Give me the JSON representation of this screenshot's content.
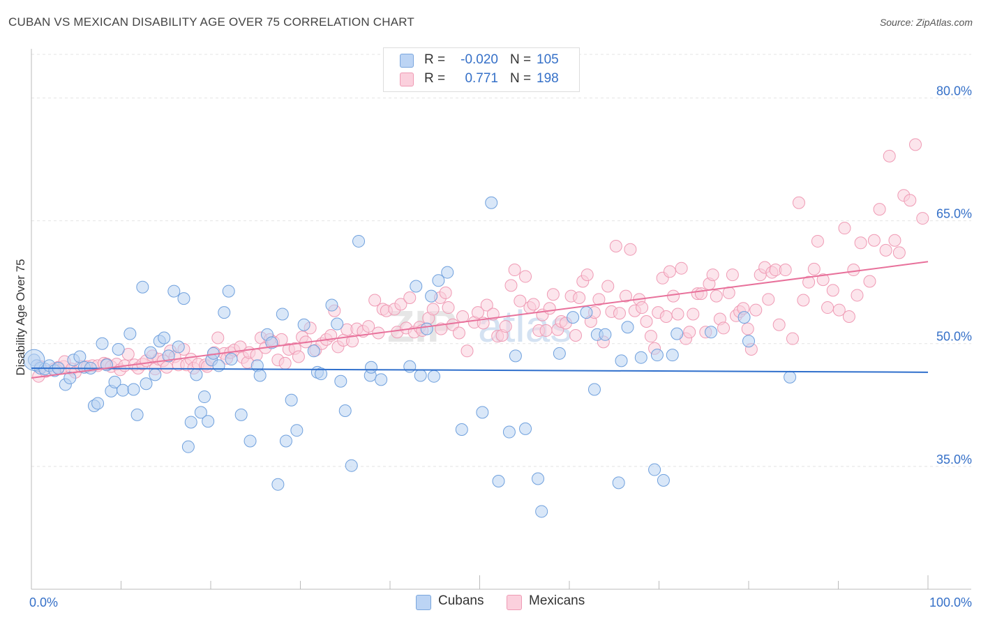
{
  "header": {
    "title": "CUBAN VS MEXICAN DISABILITY AGE OVER 75 CORRELATION CHART",
    "source": "Source: ZipAtlas.com"
  },
  "legend": {
    "r_label": "R =",
    "n_label": "N =",
    "rows": [
      {
        "name": "Cubans",
        "r": "-0.020",
        "n": "105",
        "color": "#a8c8f0"
      },
      {
        "name": "Mexicans",
        "r": "0.771",
        "n": "198",
        "color": "#f7b8cc"
      }
    ]
  },
  "watermark": {
    "zip": "ZIP",
    "atlas": "atlas"
  },
  "chart_data": {
    "type": "scatter",
    "title": "CUBAN VS MEXICAN DISABILITY AGE OVER 75 CORRELATION CHART",
    "xlabel": "",
    "ylabel": "Disability Age Over 75",
    "xlim": [
      0,
      100
    ],
    "ylim": [
      20,
      86
    ],
    "x_tick_labels": [
      "0.0%",
      "100.0%"
    ],
    "y_ticks": [
      35,
      50,
      65,
      80
    ],
    "y_tick_labels": [
      "35.0%",
      "50.0%",
      "65.0%",
      "80.0%"
    ],
    "grid": true,
    "series": [
      {
        "name": "Cubans",
        "color": "#6fa0dd",
        "fill": "#b9d3f3",
        "trend": {
          "x": [
            0,
            100
          ],
          "y": [
            47.0,
            46.5
          ]
        },
        "points": [
          [
            0.3,
            48.0
          ],
          [
            0.6,
            47.3
          ],
          [
            1.0,
            47.0
          ],
          [
            1.5,
            46.9
          ],
          [
            2.0,
            47.3
          ],
          [
            2.6,
            46.7
          ],
          [
            3.0,
            47.0
          ],
          [
            3.8,
            45.0
          ],
          [
            4.3,
            45.8
          ],
          [
            4.7,
            48.0
          ],
          [
            5.4,
            48.4
          ],
          [
            5.9,
            47.1
          ],
          [
            6.6,
            47.0
          ],
          [
            7.0,
            42.4
          ],
          [
            7.4,
            42.7
          ],
          [
            7.9,
            50.0
          ],
          [
            8.4,
            47.4
          ],
          [
            8.9,
            44.2
          ],
          [
            9.3,
            45.3
          ],
          [
            9.7,
            49.3
          ],
          [
            10.2,
            44.3
          ],
          [
            11.0,
            51.2
          ],
          [
            11.4,
            44.4
          ],
          [
            11.8,
            41.3
          ],
          [
            12.4,
            56.9
          ],
          [
            12.8,
            45.1
          ],
          [
            13.3,
            48.9
          ],
          [
            13.8,
            46.2
          ],
          [
            14.3,
            50.3
          ],
          [
            14.8,
            50.7
          ],
          [
            15.3,
            48.5
          ],
          [
            15.9,
            56.4
          ],
          [
            16.4,
            49.6
          ],
          [
            17.0,
            55.5
          ],
          [
            17.5,
            37.4
          ],
          [
            17.8,
            40.4
          ],
          [
            18.4,
            46.2
          ],
          [
            18.9,
            41.6
          ],
          [
            19.3,
            43.5
          ],
          [
            19.7,
            40.5
          ],
          [
            20.1,
            48.0
          ],
          [
            20.3,
            48.8
          ],
          [
            20.9,
            47.3
          ],
          [
            21.5,
            53.8
          ],
          [
            22.0,
            56.4
          ],
          [
            22.3,
            48.1
          ],
          [
            23.4,
            41.3
          ],
          [
            24.4,
            38.1
          ],
          [
            25.2,
            47.3
          ],
          [
            25.5,
            46.1
          ],
          [
            26.3,
            51.1
          ],
          [
            26.8,
            50.1
          ],
          [
            27.5,
            32.8
          ],
          [
            28.0,
            53.6
          ],
          [
            28.4,
            38.1
          ],
          [
            29.0,
            43.1
          ],
          [
            29.6,
            39.4
          ],
          [
            30.4,
            52.3
          ],
          [
            31.5,
            49.1
          ],
          [
            31.9,
            46.5
          ],
          [
            32.3,
            46.3
          ],
          [
            33.5,
            54.7
          ],
          [
            34.1,
            52.4
          ],
          [
            34.5,
            45.4
          ],
          [
            35.0,
            41.8
          ],
          [
            35.7,
            35.1
          ],
          [
            36.5,
            62.5
          ],
          [
            37.8,
            46.1
          ],
          [
            37.9,
            47.1
          ],
          [
            39.0,
            45.6
          ],
          [
            42.2,
            47.2
          ],
          [
            42.9,
            57.0
          ],
          [
            43.4,
            46.1
          ],
          [
            44.1,
            51.8
          ],
          [
            44.6,
            55.8
          ],
          [
            44.9,
            46.0
          ],
          [
            45.4,
            57.7
          ],
          [
            46.4,
            58.7
          ],
          [
            48.0,
            39.5
          ],
          [
            50.3,
            41.6
          ],
          [
            51.3,
            67.2
          ],
          [
            52.1,
            33.2
          ],
          [
            53.3,
            39.2
          ],
          [
            54.0,
            48.5
          ],
          [
            55.1,
            39.6
          ],
          [
            56.5,
            33.5
          ],
          [
            56.9,
            29.5
          ],
          [
            58.9,
            48.8
          ],
          [
            60.4,
            53.2
          ],
          [
            61.9,
            53.8
          ],
          [
            62.8,
            44.4
          ],
          [
            63.1,
            51.1
          ],
          [
            64.0,
            51.1
          ],
          [
            65.5,
            33.0
          ],
          [
            65.8,
            47.9
          ],
          [
            66.5,
            52.0
          ],
          [
            68.0,
            48.3
          ],
          [
            69.5,
            34.6
          ],
          [
            69.8,
            48.6
          ],
          [
            70.5,
            33.3
          ],
          [
            71.5,
            48.6
          ],
          [
            72.0,
            51.2
          ],
          [
            75.8,
            51.4
          ],
          [
            79.5,
            53.2
          ],
          [
            80.0,
            50.3
          ],
          [
            84.6,
            45.9
          ]
        ]
      },
      {
        "name": "Mexicans",
        "color": "#ef9ab4",
        "fill": "#fad0dc",
        "trend": {
          "x": [
            0,
            100
          ],
          "y": [
            45.8,
            60.0
          ]
        },
        "points": [
          [
            0.8,
            46.0
          ],
          [
            1.0,
            47.2
          ],
          [
            1.6,
            46.6
          ],
          [
            2.5,
            46.9
          ],
          [
            3.0,
            47.1
          ],
          [
            3.6,
            47.2
          ],
          [
            3.7,
            47.8
          ],
          [
            4.5,
            46.9
          ],
          [
            4.9,
            46.5
          ],
          [
            5.5,
            47.2
          ],
          [
            6.2,
            47.2
          ],
          [
            6.8,
            47.3
          ],
          [
            7.4,
            47.3
          ],
          [
            8.1,
            47.6
          ],
          [
            8.4,
            47.5
          ],
          [
            8.9,
            47.2
          ],
          [
            9.5,
            47.5
          ],
          [
            9.9,
            46.8
          ],
          [
            10.4,
            47.3
          ],
          [
            10.8,
            48.7
          ],
          [
            11.5,
            47.4
          ],
          [
            11.9,
            47.0
          ],
          [
            12.4,
            47.5
          ],
          [
            12.8,
            47.9
          ],
          [
            13.5,
            48.5
          ],
          [
            13.8,
            46.9
          ],
          [
            14.2,
            48.1
          ],
          [
            14.7,
            47.9
          ],
          [
            15.1,
            47.1
          ],
          [
            15.5,
            49.1
          ],
          [
            16.0,
            48.4
          ],
          [
            16.4,
            47.4
          ],
          [
            17.0,
            49.3
          ],
          [
            17.3,
            47.4
          ],
          [
            17.8,
            48.1
          ],
          [
            18.1,
            47.0
          ],
          [
            18.6,
            47.5
          ],
          [
            19.4,
            47.4
          ],
          [
            19.6,
            47.2
          ],
          [
            20.1,
            48.0
          ],
          [
            20.4,
            48.9
          ],
          [
            20.8,
            50.7
          ],
          [
            21.5,
            48.8
          ],
          [
            21.8,
            48.2
          ],
          [
            22.2,
            48.9
          ],
          [
            22.6,
            49.2
          ],
          [
            23.3,
            49.6
          ],
          [
            23.6,
            48.3
          ],
          [
            24.1,
            47.7
          ],
          [
            24.3,
            48.9
          ],
          [
            25.1,
            48.6
          ],
          [
            25.6,
            50.7
          ],
          [
            26.1,
            49.5
          ],
          [
            26.6,
            50.5
          ],
          [
            27.0,
            50.2
          ],
          [
            27.5,
            48.0
          ],
          [
            27.9,
            50.5
          ],
          [
            28.3,
            47.6
          ],
          [
            28.7,
            49.3
          ],
          [
            29.4,
            49.4
          ],
          [
            29.8,
            48.4
          ],
          [
            30.2,
            50.8
          ],
          [
            30.6,
            50.2
          ],
          [
            31.1,
            51.9
          ],
          [
            31.7,
            49.2
          ],
          [
            32.4,
            50.0
          ],
          [
            32.9,
            50.5
          ],
          [
            33.4,
            51.0
          ],
          [
            33.8,
            54.0
          ],
          [
            34.2,
            49.6
          ],
          [
            34.8,
            50.4
          ],
          [
            35.2,
            51.7
          ],
          [
            35.8,
            50.3
          ],
          [
            36.3,
            51.8
          ],
          [
            37.0,
            51.5
          ],
          [
            37.6,
            52.1
          ],
          [
            38.3,
            55.3
          ],
          [
            38.7,
            51.3
          ],
          [
            39.2,
            54.2
          ],
          [
            39.6,
            54.0
          ],
          [
            40.5,
            54.2
          ],
          [
            40.8,
            51.4
          ],
          [
            41.2,
            54.8
          ],
          [
            41.8,
            51.9
          ],
          [
            42.2,
            55.6
          ],
          [
            42.7,
            51.4
          ],
          [
            43.3,
            52.0
          ],
          [
            43.6,
            51.6
          ],
          [
            44.3,
            53.1
          ],
          [
            44.8,
            54.2
          ],
          [
            45.6,
            55.6
          ],
          [
            45.7,
            51.8
          ],
          [
            46.2,
            56.2
          ],
          [
            46.5,
            54.4
          ],
          [
            47.0,
            52.3
          ],
          [
            47.7,
            51.3
          ],
          [
            48.1,
            53.3
          ],
          [
            48.6,
            49.1
          ],
          [
            49.4,
            52.6
          ],
          [
            49.8,
            53.8
          ],
          [
            50.4,
            52.5
          ],
          [
            50.8,
            54.7
          ],
          [
            51.5,
            53.6
          ],
          [
            52.0,
            50.9
          ],
          [
            52.5,
            51.0
          ],
          [
            52.9,
            52.1
          ],
          [
            53.5,
            57.1
          ],
          [
            53.9,
            59.0
          ],
          [
            54.5,
            55.2
          ],
          [
            55.1,
            58.2
          ],
          [
            55.6,
            54.4
          ],
          [
            56.0,
            54.8
          ],
          [
            56.6,
            51.6
          ],
          [
            57.0,
            53.5
          ],
          [
            57.4,
            51.6
          ],
          [
            57.8,
            54.3
          ],
          [
            58.2,
            56.0
          ],
          [
            58.7,
            51.7
          ],
          [
            59.1,
            52.7
          ],
          [
            59.6,
            52.5
          ],
          [
            60.2,
            55.8
          ],
          [
            60.7,
            51.0
          ],
          [
            61.1,
            55.6
          ],
          [
            61.5,
            57.6
          ],
          [
            62.0,
            58.4
          ],
          [
            62.4,
            52.7
          ],
          [
            62.8,
            53.8
          ],
          [
            63.3,
            55.4
          ],
          [
            63.8,
            50.2
          ],
          [
            64.3,
            57.0
          ],
          [
            64.7,
            53.9
          ],
          [
            65.2,
            61.9
          ],
          [
            65.6,
            53.7
          ],
          [
            66.3,
            55.8
          ],
          [
            66.8,
            61.5
          ],
          [
            67.3,
            54.0
          ],
          [
            67.8,
            55.4
          ],
          [
            68.1,
            54.4
          ],
          [
            68.6,
            52.7
          ],
          [
            69.1,
            50.9
          ],
          [
            69.5,
            49.4
          ],
          [
            69.9,
            53.8
          ],
          [
            70.4,
            58.0
          ],
          [
            70.8,
            53.3
          ],
          [
            71.2,
            58.8
          ],
          [
            71.6,
            55.8
          ],
          [
            72.1,
            53.6
          ],
          [
            72.5,
            59.2
          ],
          [
            73.0,
            50.6
          ],
          [
            73.4,
            51.4
          ],
          [
            73.8,
            53.6
          ],
          [
            74.3,
            56.1
          ],
          [
            74.7,
            56.1
          ],
          [
            75.2,
            51.4
          ],
          [
            75.6,
            57.3
          ],
          [
            76.0,
            58.4
          ],
          [
            76.4,
            55.8
          ],
          [
            76.8,
            53.0
          ],
          [
            77.2,
            51.9
          ],
          [
            77.8,
            56.2
          ],
          [
            78.2,
            58.4
          ],
          [
            78.6,
            53.4
          ],
          [
            79.0,
            53.9
          ],
          [
            79.4,
            54.3
          ],
          [
            79.9,
            51.8
          ],
          [
            80.3,
            49.3
          ],
          [
            80.8,
            54.1
          ],
          [
            81.3,
            58.4
          ],
          [
            81.8,
            59.3
          ],
          [
            82.2,
            55.4
          ],
          [
            82.6,
            58.7
          ],
          [
            83.0,
            59.0
          ],
          [
            83.4,
            52.3
          ],
          [
            84.1,
            59.0
          ],
          [
            84.9,
            50.6
          ],
          [
            85.6,
            67.2
          ],
          [
            86.1,
            55.3
          ],
          [
            86.7,
            57.5
          ],
          [
            87.3,
            59.1
          ],
          [
            87.7,
            62.5
          ],
          [
            88.3,
            57.8
          ],
          [
            88.8,
            54.4
          ],
          [
            89.4,
            56.5
          ],
          [
            90.1,
            54.1
          ],
          [
            90.7,
            64.1
          ],
          [
            91.2,
            53.3
          ],
          [
            91.7,
            59.0
          ],
          [
            92.1,
            55.9
          ],
          [
            92.5,
            62.3
          ],
          [
            93.5,
            57.6
          ],
          [
            94.0,
            62.6
          ],
          [
            94.6,
            66.4
          ],
          [
            95.3,
            61.4
          ],
          [
            95.7,
            72.9
          ],
          [
            96.3,
            62.6
          ],
          [
            96.8,
            61.1
          ],
          [
            97.3,
            68.1
          ],
          [
            98.0,
            67.5
          ],
          [
            98.6,
            74.3
          ],
          [
            99.4,
            65.3
          ]
        ]
      }
    ]
  }
}
